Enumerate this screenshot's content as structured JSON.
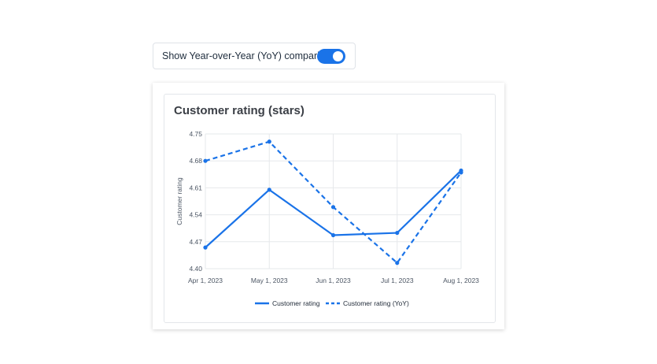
{
  "toggle": {
    "label": "Show Year-over-Year (YoY) comparison",
    "on": true
  },
  "colors": {
    "accent": "#1a73e8",
    "series": "#1a73e8",
    "grid": "#e6e8eb"
  },
  "chart_data": {
    "type": "line",
    "title": "Customer rating (stars)",
    "xlabel": "",
    "ylabel": "Customer rating",
    "x": [
      "Apr 1, 2023",
      "May 1, 2023",
      "Jun 1, 2023",
      "Jul 1, 2023",
      "Aug 1, 2023"
    ],
    "ylim": [
      4.4,
      4.75
    ],
    "yticks": [
      "4.75",
      "4.68",
      "4.61",
      "4.54",
      "4.47",
      "4.40"
    ],
    "grid": true,
    "legend_position": "bottom",
    "series": [
      {
        "name": "Customer rating",
        "style": "solid",
        "values": [
          4.455,
          4.605,
          4.487,
          4.493,
          4.655
        ]
      },
      {
        "name": "Customer rating (YoY)",
        "style": "dashed",
        "values": [
          4.68,
          4.73,
          4.56,
          4.415,
          4.65
        ]
      }
    ]
  }
}
